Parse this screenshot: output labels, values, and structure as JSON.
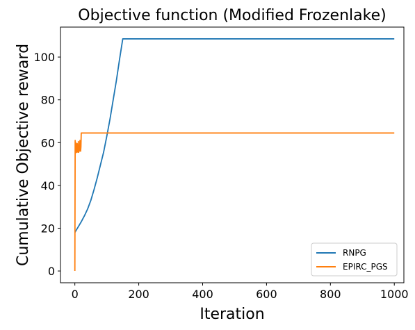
{
  "chart_data": {
    "type": "line",
    "title": "Objective function (Modified Frozenlake)",
    "xlabel": "Iteration",
    "ylabel": "Cumulative Objective reward",
    "xlim": [
      -45,
      1030
    ],
    "ylim": [
      -5.5,
      114
    ],
    "xticks": [
      0,
      200,
      400,
      600,
      800,
      1000
    ],
    "yticks": [
      0,
      20,
      40,
      60,
      80,
      100
    ],
    "grid": false,
    "legend_position": "bottom-right",
    "series": [
      {
        "name": "RNPG",
        "color": "#1f77b4",
        "x": [
          0,
          10,
          20,
          30,
          40,
          50,
          60,
          70,
          80,
          90,
          100,
          110,
          120,
          130,
          140,
          150,
          160,
          200,
          300,
          400,
          500,
          600,
          700,
          800,
          900,
          1000
        ],
        "y": [
          18,
          20.5,
          23,
          25.8,
          29,
          33,
          38,
          43.5,
          49.5,
          55.5,
          63,
          71,
          80,
          89,
          99,
          108.5,
          108.5,
          108.5,
          108.5,
          108.5,
          108.5,
          108.5,
          108.5,
          108.5,
          108.5,
          108.5
        ]
      },
      {
        "name": "EPIRC_PGS",
        "color": "#ff7f0e",
        "x": [
          0,
          1,
          2,
          3,
          4,
          5,
          6,
          7,
          8,
          9,
          10,
          11,
          12,
          13,
          14,
          15,
          16,
          17,
          18,
          19,
          20,
          22,
          100,
          200,
          400,
          600,
          800,
          1000
        ],
        "y": [
          0,
          61,
          55,
          60,
          56,
          58,
          55.5,
          59.5,
          56,
          58,
          55.5,
          60.5,
          55.5,
          59,
          56,
          57,
          61,
          57,
          56,
          58,
          64.5,
          64.5,
          64.5,
          64.5,
          64.5,
          64.5,
          64.5,
          64.5
        ]
      }
    ]
  }
}
